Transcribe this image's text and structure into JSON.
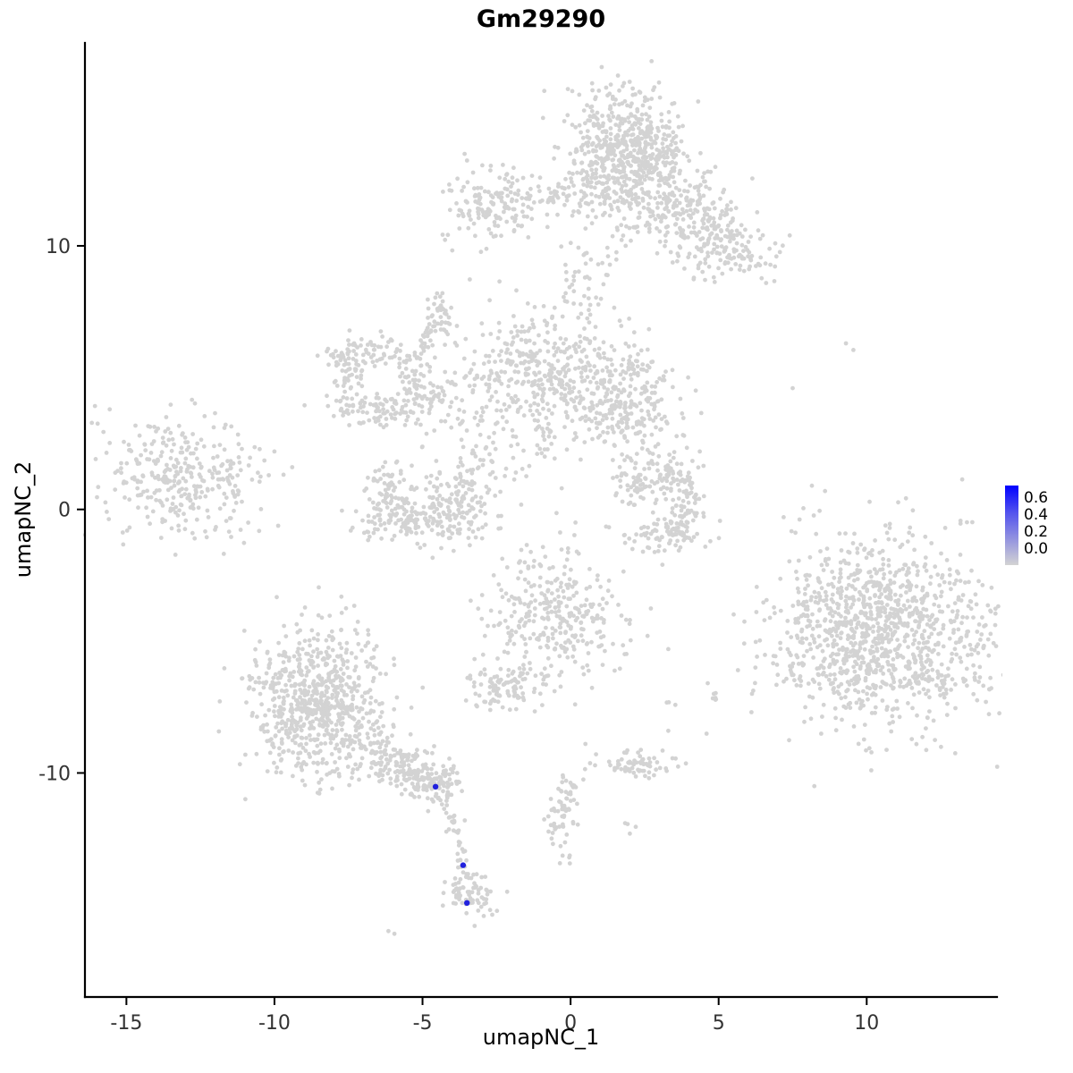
{
  "chart_data": {
    "type": "scatter",
    "title": "Gm29290",
    "xlabel": "umapNC_1",
    "ylabel": "umapNC_2",
    "xlim": [
      -16.4,
      14.4
    ],
    "ylim": [
      -18.5,
      17.7
    ],
    "grid": false,
    "legend_position": "right",
    "x_ticks": [
      {
        "v": -15,
        "t": "-15"
      },
      {
        "v": -10,
        "t": "-10"
      },
      {
        "v": -5,
        "t": "-5"
      },
      {
        "v": 0,
        "t": "0"
      },
      {
        "v": 5,
        "t": "5"
      },
      {
        "v": 10,
        "t": "10"
      }
    ],
    "y_ticks": [
      {
        "v": 10,
        "t": "10"
      },
      {
        "v": 0,
        "t": "0"
      },
      {
        "v": -10,
        "t": "-10"
      }
    ],
    "axis_color": "#000000",
    "text_color": "#333333",
    "point_color": "#D3D3D3",
    "point_radius": 2.4,
    "highlight_color": "#2222DD",
    "highlight_radius": 3.2,
    "highlight_points": [
      [
        -4.56,
        -10.52
      ],
      [
        -3.63,
        -13.5
      ],
      [
        -3.5,
        -14.93
      ]
    ],
    "seed": 42,
    "clusters": [
      {
        "name": "top-main",
        "cx": 1.6,
        "cy": 13.4,
        "sx": 1.0,
        "sy": 1.25,
        "n": 560
      },
      {
        "name": "top-main-right",
        "cx": 2.6,
        "cy": 13.6,
        "sx": 0.6,
        "sy": 0.9,
        "n": 120
      },
      {
        "name": "top-arm-1",
        "cx": 3.9,
        "cy": 11.4,
        "sx": 0.85,
        "sy": 0.75,
        "n": 180
      },
      {
        "name": "top-arm-2",
        "cx": 5.3,
        "cy": 9.9,
        "sx": 0.8,
        "sy": 0.65,
        "n": 150
      },
      {
        "name": "top-left-small",
        "cx": -2.5,
        "cy": 11.5,
        "sx": 0.95,
        "sy": 0.7,
        "n": 170
      },
      {
        "name": "mid-core",
        "cx": -0.8,
        "cy": 5.1,
        "sx": 1.25,
        "sy": 1.35,
        "n": 430
      },
      {
        "name": "mid-right-lobe",
        "cx": 2.0,
        "cy": 4.1,
        "sx": 0.85,
        "sy": 0.95,
        "n": 240
      },
      {
        "name": "ring-top",
        "cx": -6.7,
        "cy": 5.9,
        "sx": 0.85,
        "sy": 0.3,
        "n": 75
      },
      {
        "name": "ring-left",
        "cx": -7.5,
        "cy": 4.9,
        "sx": 0.3,
        "sy": 0.7,
        "n": 65
      },
      {
        "name": "ring-bottom",
        "cx": -6.4,
        "cy": 3.8,
        "sx": 0.85,
        "sy": 0.3,
        "n": 75
      },
      {
        "name": "ring-right",
        "cx": -5.3,
        "cy": 4.8,
        "sx": 0.3,
        "sy": 0.65,
        "n": 55
      },
      {
        "name": "above-ring",
        "cx": -4.5,
        "cy": 7.2,
        "sx": 0.3,
        "sy": 0.5,
        "n": 45
      },
      {
        "name": "mid-left-bridge",
        "cx": -3.8,
        "cy": 3.4,
        "sx": 0.8,
        "sy": 0.7,
        "n": 35
      },
      {
        "name": "crescent-base",
        "cx": -4.9,
        "cy": -0.4,
        "sx": 1.3,
        "sy": 0.45,
        "n": 160
      },
      {
        "name": "crescent-left",
        "cx": -6.3,
        "cy": 0.7,
        "sx": 0.4,
        "sy": 0.6,
        "n": 70
      },
      {
        "name": "crescent-right",
        "cx": -3.5,
        "cy": 0.8,
        "sx": 0.45,
        "sy": 0.65,
        "n": 80
      },
      {
        "name": "crescent-fill",
        "cx": -4.9,
        "cy": 0.2,
        "sx": 0.9,
        "sy": 0.6,
        "n": 50
      },
      {
        "name": "far-left",
        "cx": -13.2,
        "cy": 1.2,
        "sx": 1.4,
        "sy": 1.1,
        "n": 330,
        "rot": -15
      },
      {
        "name": "far-left-spray",
        "cx": -11.5,
        "cy": 1.7,
        "sx": 0.5,
        "sy": 0.6,
        "n": 8
      },
      {
        "name": "right-crescent-top",
        "cx": 2.9,
        "cy": 1.4,
        "sx": 0.65,
        "sy": 0.3,
        "n": 65
      },
      {
        "name": "right-crescent-right",
        "cx": 3.8,
        "cy": 0.2,
        "sx": 0.35,
        "sy": 0.75,
        "n": 90
      },
      {
        "name": "right-crescent-bottom",
        "cx": 3.2,
        "cy": -1.0,
        "sx": 0.65,
        "sy": 0.3,
        "n": 65
      },
      {
        "name": "right-crescent-left",
        "cx": 2.1,
        "cy": 0.8,
        "sx": 0.3,
        "sy": 0.45,
        "n": 40
      },
      {
        "name": "far-right-main",
        "cx": 10.5,
        "cy": -4.7,
        "sx": 1.9,
        "sy": 1.75,
        "n": 1150
      },
      {
        "name": "far-right-halo",
        "cx": 9.1,
        "cy": -1.8,
        "sx": 0.8,
        "sy": 1.0,
        "n": 10
      },
      {
        "name": "center-low",
        "cx": -0.5,
        "cy": -4.1,
        "sx": 1.15,
        "sy": 1.3,
        "n": 330
      },
      {
        "name": "below-center-low",
        "cx": -2.4,
        "cy": -6.8,
        "sx": 0.6,
        "sy": 0.45,
        "n": 80
      },
      {
        "name": "bottom-left-fill",
        "cx": -8.6,
        "cy": -7.4,
        "sx": 0.9,
        "sy": 1.1,
        "n": 130
      },
      {
        "name": "tail-clump",
        "cx": -4.5,
        "cy": -10.3,
        "sx": 0.5,
        "sy": 0.38,
        "n": 90
      },
      {
        "name": "bottom-clump",
        "cx": -3.4,
        "cy": -14.6,
        "sx": 0.45,
        "sy": 0.42,
        "n": 70
      },
      {
        "name": "small-right-low",
        "cx": 2.2,
        "cy": -9.7,
        "sx": 0.7,
        "sy": 0.3,
        "n": 70
      },
      {
        "name": "dots-a",
        "cx": 4.9,
        "cy": -7.0,
        "sx": 0.18,
        "sy": 0.15,
        "n": 5
      },
      {
        "name": "dots-b",
        "cx": 3.2,
        "cy": -7.3,
        "sx": 0.15,
        "sy": 0.12,
        "n": 3
      },
      {
        "name": "dots-c",
        "cx": 2.0,
        "cy": -12.1,
        "sx": 0.15,
        "sy": 0.15,
        "n": 3
      },
      {
        "name": "sparse-mid-gap",
        "cx": -1.4,
        "cy": 1.8,
        "sx": 0.7,
        "sy": 0.6,
        "n": 9
      }
    ],
    "rings": [
      {
        "name": "bottom-left-ring",
        "cx": -8.6,
        "cy": -7.4,
        "rx": 1.5,
        "ry": 1.9,
        "rs": 0.5,
        "n": 620
      }
    ],
    "trails": [
      {
        "x1": -1.4,
        "y1": 11.5,
        "x2": 0.4,
        "y2": 12.4,
        "n": 22,
        "jitter": 0.3
      },
      {
        "x1": 1.3,
        "y1": 10.9,
        "x2": 0.1,
        "y2": 7.8,
        "n": 48,
        "jitter": 0.55
      },
      {
        "x1": -5.1,
        "y1": 3.9,
        "x2": -2.9,
        "y2": 5.0,
        "n": 40,
        "jitter": 0.3
      },
      {
        "x1": -4.6,
        "y1": 6.6,
        "x2": -5.2,
        "y2": 5.9,
        "n": 14,
        "jitter": 0.2
      },
      {
        "x1": -6.7,
        "y1": -9.2,
        "x2": -4.9,
        "y2": -10.2,
        "n": 150,
        "jitter": 0.4
      },
      {
        "x1": -4.3,
        "y1": -10.8,
        "x2": -3.8,
        "y2": -12.7,
        "n": 26,
        "jitter": 0.22
      },
      {
        "x1": -3.7,
        "y1": -13.0,
        "x2": -3.5,
        "y2": -14.2,
        "n": 16,
        "jitter": 0.15
      },
      {
        "x1": -0.1,
        "y1": -10.4,
        "x2": -0.5,
        "y2": -12.4,
        "n": 60,
        "jitter": 0.22
      },
      {
        "x1": -0.45,
        "y1": -12.6,
        "x2": -0.2,
        "y2": -13.4,
        "n": 8,
        "jitter": 0.15
      },
      {
        "x1": -1.3,
        "y1": -5.9,
        "x2": -2.1,
        "y2": -6.5,
        "n": 10,
        "jitter": 0.2
      },
      {
        "x1": -2.9,
        "y1": 2.9,
        "x2": -2.7,
        "y2": 1.6,
        "n": 8,
        "jitter": 0.18
      }
    ],
    "singles": [
      [
        9.3,
        6.3
      ],
      [
        9.55,
        6.05
      ],
      [
        7.5,
        4.6
      ],
      [
        8.15,
        0.9
      ],
      [
        13.6,
        -4.1
      ],
      [
        2.6,
        -4.8
      ],
      [
        3.3,
        -5.3
      ],
      [
        3.1,
        -2.1
      ],
      [
        3.3,
        -8.4
      ],
      [
        0.5,
        -8.9
      ],
      [
        -6.15,
        -16.0
      ],
      [
        -5.95,
        -16.1
      ],
      [
        -0.3,
        0.8
      ],
      [
        -2.4,
        8.65
      ],
      [
        2.5,
        2.8
      ],
      [
        2.4,
        3.3
      ],
      [
        -10.0,
        2.2
      ],
      [
        -9.4,
        1.6
      ],
      [
        2.0,
        -12.3
      ]
    ],
    "legend": {
      "labels": [
        "0.6",
        "0.4",
        "0.2",
        "0.0"
      ],
      "gradient": [
        "#0000FF",
        "#5151EE",
        "#9292E0",
        "#D3D3D3"
      ]
    }
  }
}
